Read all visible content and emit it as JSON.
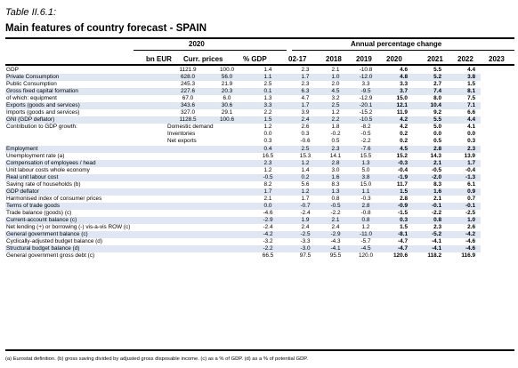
{
  "table_label": "Table II.6.1:",
  "table_title": "Main features of country forecast - SPAIN",
  "header": {
    "year_group": "2020",
    "pct_group": "Annual percentage change",
    "col_bn_eur": "bn EUR",
    "col_curr_prices": "Curr. prices",
    "col_pct_gdp": "% GDP",
    "col_0217": "02-17",
    "col_2018": "2018",
    "col_2019": "2019",
    "col_2020": "2020",
    "col_2021": "2021",
    "col_2022": "2022",
    "col_2023": "2023"
  },
  "rows": [
    {
      "label": "GDP",
      "sub": "",
      "cp": "1121.9",
      "pg": "100.0",
      "v": [
        "1.4",
        "2.3",
        "2.1",
        "-10.8"
      ],
      "f": [
        "4.6",
        "5.5",
        "4.4"
      ]
    },
    {
      "label": "Private Consumption",
      "sub": "",
      "cp": "628.0",
      "pg": "56.0",
      "v": [
        "1.1",
        "1.7",
        "1.0",
        "-12.0"
      ],
      "f": [
        "4.8",
        "5.2",
        "3.8"
      ]
    },
    {
      "label": "Public Consumption",
      "sub": "",
      "cp": "245.3",
      "pg": "21.9",
      "v": [
        "2.5",
        "2.3",
        "2.0",
        "3.3"
      ],
      "f": [
        "3.3",
        "2.7",
        "1.5"
      ]
    },
    {
      "label": "Gross fixed capital formation",
      "sub": "",
      "cp": "227.6",
      "pg": "20.3",
      "v": [
        "0.1",
        "6.3",
        "4.5",
        "-9.5"
      ],
      "f": [
        "3.7",
        "7.4",
        "8.1"
      ]
    },
    {
      "label": "of which: equipment",
      "sub": "",
      "cp": "67.0",
      "pg": "6.0",
      "v": [
        "1.3",
        "4.7",
        "3.2",
        "-12.9"
      ],
      "f": [
        "15.0",
        "8.0",
        "7.5"
      ]
    },
    {
      "label": "Exports (goods and services)",
      "sub": "",
      "cp": "343.6",
      "pg": "30.6",
      "v": [
        "3.3",
        "1.7",
        "2.5",
        "-20.1"
      ],
      "f": [
        "12.1",
        "10.4",
        "7.1"
      ]
    },
    {
      "label": "Imports (goods and services)",
      "sub": "",
      "cp": "327.0",
      "pg": "29.1",
      "v": [
        "2.2",
        "3.9",
        "1.2",
        "-15.2"
      ],
      "f": [
        "11.9",
        "9.2",
        "6.6"
      ]
    },
    {
      "label": "GNI (GDP deflator)",
      "sub": "",
      "cp": "1128.5",
      "pg": "100.6",
      "v": [
        "1.5",
        "2.4",
        "2.2",
        "-10.5"
      ],
      "f": [
        "4.2",
        "5.5",
        "4.4"
      ]
    },
    {
      "label": "Contribution to GDP growth:",
      "sub": "Domestic demand",
      "cp": "",
      "pg": "",
      "v": [
        "1.2",
        "2.6",
        "1.8",
        "-8.2"
      ],
      "f": [
        "4.2",
        "5.0",
        "4.1"
      ]
    },
    {
      "label": "",
      "sub": "Inventories",
      "cp": "",
      "pg": "",
      "v": [
        "0.0",
        "0.3",
        "-0.2",
        "-0.5"
      ],
      "f": [
        "0.2",
        "0.0",
        "0.0"
      ]
    },
    {
      "label": "",
      "sub": "Net exports",
      "cp": "",
      "pg": "",
      "v": [
        "0.3",
        "-0.6",
        "0.5",
        "-2.2"
      ],
      "f": [
        "0.2",
        "0.5",
        "0.3"
      ]
    },
    {
      "label": "Employment",
      "sub": "",
      "cp": "",
      "pg": "",
      "v": [
        "0.4",
        "2.5",
        "2.3",
        "-7.6"
      ],
      "f": [
        "4.5",
        "2.8",
        "2.3"
      ]
    },
    {
      "label": "Unemployment rate (a)",
      "sub": "",
      "cp": "",
      "pg": "",
      "v": [
        "16.5",
        "15.3",
        "14.1",
        "15.5"
      ],
      "f": [
        "15.2",
        "14.3",
        "13.9"
      ]
    },
    {
      "label": "Compensation of employees / head",
      "sub": "",
      "cp": "",
      "pg": "",
      "v": [
        "2.3",
        "1.2",
        "2.8",
        "1.3"
      ],
      "f": [
        "-0.3",
        "2.1",
        "1.7"
      ]
    },
    {
      "label": "Unit labour costs whole economy",
      "sub": "",
      "cp": "",
      "pg": "",
      "v": [
        "1.2",
        "1.4",
        "3.0",
        "5.0"
      ],
      "f": [
        "-0.4",
        "-0.5",
        "-0.4"
      ]
    },
    {
      "label": "Real unit labour cost",
      "sub": "",
      "cp": "",
      "pg": "",
      "v": [
        "-0.5",
        "0.2",
        "1.6",
        "3.8"
      ],
      "f": [
        "-1.9",
        "-2.0",
        "-1.3"
      ]
    },
    {
      "label": "Saving rate of households (b)",
      "sub": "",
      "cp": "",
      "pg": "",
      "v": [
        "8.2",
        "5.6",
        "8.3",
        "15.0"
      ],
      "f": [
        "11.7",
        "8.3",
        "6.1"
      ]
    },
    {
      "label": "GDP deflator",
      "sub": "",
      "cp": "",
      "pg": "",
      "v": [
        "1.7",
        "1.2",
        "1.3",
        "1.1"
      ],
      "f": [
        "1.5",
        "1.6",
        "0.9"
      ]
    },
    {
      "label": "Harmonised index of consumer prices",
      "sub": "",
      "cp": "",
      "pg": "",
      "v": [
        "2.1",
        "1.7",
        "0.8",
        "-0.3"
      ],
      "f": [
        "2.8",
        "2.1",
        "0.7"
      ]
    },
    {
      "label": "Terms of trade goods",
      "sub": "",
      "cp": "",
      "pg": "",
      "v": [
        "0.0",
        "-0.7",
        "-0.5",
        "2.8"
      ],
      "f": [
        "-0.9",
        "-0.1",
        "-0.1"
      ]
    },
    {
      "label": "Trade balance (goods) (c)",
      "sub": "",
      "cp": "",
      "pg": "",
      "v": [
        "-4.6",
        "-2.4",
        "-2.2",
        "-0.8"
      ],
      "f": [
        "-1.5",
        "-2.2",
        "-2.5"
      ]
    },
    {
      "label": "Current-account balance (c)",
      "sub": "",
      "cp": "",
      "pg": "",
      "v": [
        "-2.9",
        "1.9",
        "2.1",
        "0.8"
      ],
      "f": [
        "0.3",
        "0.8",
        "1.0"
      ]
    },
    {
      "label": "Net lending (+) or borrowing (-) vis-a-vis ROW (c)",
      "sub": "",
      "cp": "",
      "pg": "",
      "v": [
        "-2.4",
        "2.4",
        "2.4",
        "1.2"
      ],
      "f": [
        "1.5",
        "2.3",
        "2.6"
      ]
    },
    {
      "label": "General government balance (c)",
      "sub": "",
      "cp": "",
      "pg": "",
      "v": [
        "-4.2",
        "-2.5",
        "-2.9",
        "-11.0"
      ],
      "f": [
        "-8.1",
        "-5.2",
        "-4.2"
      ]
    },
    {
      "label": "Cyclically-adjusted budget balance (d)",
      "sub": "",
      "cp": "",
      "pg": "",
      "v": [
        "-3.2",
        "-3.3",
        "-4.3",
        "-5.7"
      ],
      "f": [
        "-4.7",
        "-4.1",
        "-4.6"
      ]
    },
    {
      "label": "Structural budget balance (d)",
      "sub": "",
      "cp": "",
      "pg": "",
      "v": [
        "-2.2",
        "-3.0",
        "-4.1",
        "-4.5"
      ],
      "f": [
        "-4.7",
        "-4.1",
        "-4.6"
      ]
    },
    {
      "label": "General government gross debt (c)",
      "sub": "",
      "cp": "",
      "pg": "",
      "v": [
        "66.5",
        "97.5",
        "95.5",
        "120.0"
      ],
      "f": [
        "120.6",
        "118.2",
        "116.9"
      ]
    }
  ],
  "shaded_rows": [
    1,
    3,
    5,
    7,
    11,
    13,
    15,
    17,
    19,
    21,
    23,
    25
  ],
  "shade_color": "#dfe7f3",
  "footnote": "(a) Eurostat definition.  (b) gross saving divided by adjusted gross disposable income.  (c) as a % of GDP.  (d) as a % of potential GDP."
}
